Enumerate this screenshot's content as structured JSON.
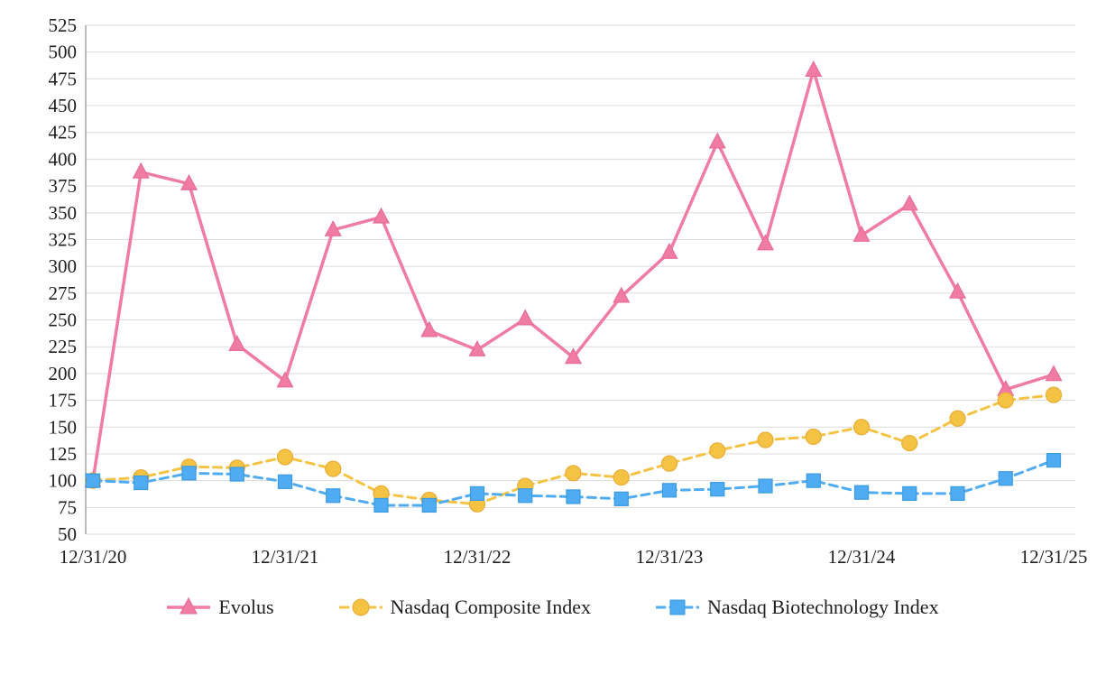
{
  "chart_data": {
    "type": "line",
    "title": "",
    "xlabel": "",
    "ylabel": "",
    "ylim": [
      50,
      525
    ],
    "yticks": [
      50,
      75,
      100,
      125,
      150,
      175,
      200,
      225,
      250,
      275,
      300,
      325,
      350,
      375,
      400,
      425,
      450,
      475,
      500,
      525
    ],
    "n_points": 21,
    "x_labels": [
      "12/31/20",
      "12/31/21",
      "12/31/22",
      "12/31/23",
      "12/31/24",
      "12/31/25"
    ],
    "x_label_indices": [
      0,
      4,
      8,
      12,
      16,
      20
    ],
    "grid": "horizontal",
    "grid_color": "#DBDBDB",
    "axis_color": "#A6A6A6",
    "legend_position": "bottom",
    "series": [
      {
        "name": "Evolus",
        "color": "#F07CA3",
        "marker_edge": "#E76E96",
        "marker": "triangle",
        "line_style": "solid",
        "line_width": 3.5,
        "values": [
          100,
          388,
          377,
          227,
          193,
          334,
          346,
          240,
          222,
          251,
          215,
          272,
          313,
          416,
          321,
          483,
          329,
          358,
          276,
          185,
          199
        ]
      },
      {
        "name": "Nasdaq Composite Index",
        "color": "#F5C344",
        "marker_edge": "#E9AE3B",
        "marker": "circle",
        "line_style": "dashed",
        "line_width": 3,
        "values": [
          100,
          103,
          113,
          112,
          122,
          111,
          88,
          82,
          78,
          95,
          107,
          103,
          116,
          128,
          138,
          141,
          150,
          135,
          158,
          175,
          180
        ]
      },
      {
        "name": "Nasdaq Biotechnology Index",
        "color": "#4FACF2",
        "marker_edge": "#3D9BE0",
        "marker": "square",
        "line_style": "dashed",
        "line_width": 3,
        "values": [
          100,
          98,
          107,
          106,
          99,
          86,
          77,
          77,
          88,
          86,
          85,
          83,
          91,
          92,
          95,
          100,
          89,
          88,
          88,
          102,
          119
        ]
      }
    ]
  }
}
